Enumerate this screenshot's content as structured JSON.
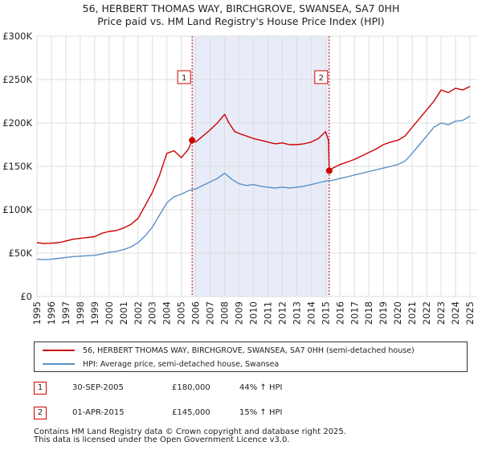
{
  "chart_data": {
    "type": "line",
    "title": "56, HERBERT THOMAS WAY, BIRCHGROVE, SWANSEA, SA7 0HH",
    "subtitle": "Price paid vs. HM Land Registry's House Price Index (HPI)",
    "xlabel": "",
    "ylabel": "",
    "xlim": [
      1995,
      2025.5
    ],
    "ylim": [
      0,
      300000
    ],
    "x_ticks": [
      1995,
      1996,
      1997,
      1998,
      1999,
      2000,
      2001,
      2002,
      2003,
      2004,
      2005,
      2006,
      2007,
      2008,
      2009,
      2010,
      2011,
      2012,
      2013,
      2014,
      2015,
      2016,
      2017,
      2018,
      2019,
      2020,
      2021,
      2022,
      2023,
      2024,
      2025
    ],
    "y_ticks": [
      {
        "value": 0,
        "label": "£0"
      },
      {
        "value": 50000,
        "label": "£50K"
      },
      {
        "value": 100000,
        "label": "£100K"
      },
      {
        "value": 150000,
        "label": "£150K"
      },
      {
        "value": 200000,
        "label": "£200K"
      },
      {
        "value": 250000,
        "label": "£250K"
      },
      {
        "value": 300000,
        "label": "£300K"
      }
    ],
    "grid": true,
    "shaded_period": {
      "start": 2005.75,
      "end": 2015.25
    },
    "series": [
      {
        "name": "56, HERBERT THOMAS WAY, BIRCHGROVE, SWANSEA, SA7 0HH (semi-detached house)",
        "color": "#cc0000",
        "x": [
          1995.0,
          1995.5,
          1996.0,
          1996.5,
          1997.0,
          1997.5,
          1998.0,
          1998.5,
          1999.0,
          1999.5,
          2000.0,
          2000.5,
          2001.0,
          2001.5,
          2002.0,
          2002.5,
          2003.0,
          2003.5,
          2004.0,
          2004.5,
          2005.0,
          2005.5,
          2005.75,
          2006.0,
          2006.5,
          2007.0,
          2007.5,
          2008.0,
          2008.3,
          2008.7,
          2009.0,
          2009.5,
          2010.0,
          2010.5,
          2011.0,
          2011.5,
          2012.0,
          2012.5,
          2013.0,
          2013.5,
          2014.0,
          2014.5,
          2015.0,
          2015.2,
          2015.25,
          2015.5,
          2016.0,
          2016.5,
          2017.0,
          2017.5,
          2018.0,
          2018.5,
          2019.0,
          2019.5,
          2020.0,
          2020.5,
          2021.0,
          2021.5,
          2022.0,
          2022.5,
          2023.0,
          2023.5,
          2024.0,
          2024.5,
          2025.0
        ],
        "y": [
          62000,
          61000,
          61500,
          62000,
          64000,
          66000,
          67000,
          68000,
          69000,
          73000,
          75000,
          76000,
          79000,
          83000,
          90000,
          105000,
          120000,
          140000,
          165000,
          168000,
          160000,
          170000,
          180000,
          178000,
          185000,
          192000,
          200000,
          210000,
          200000,
          190000,
          188000,
          185000,
          182000,
          180000,
          178000,
          176000,
          177000,
          175000,
          175000,
          176000,
          178000,
          182000,
          190000,
          180000,
          145000,
          148000,
          152000,
          155000,
          158000,
          162000,
          166000,
          170000,
          175000,
          178000,
          180000,
          185000,
          195000,
          205000,
          215000,
          225000,
          238000,
          235000,
          240000,
          238000,
          242000
        ]
      },
      {
        "name": "HPI: Average price, semi-detached house, Swansea",
        "color": "#5b8fc9",
        "x": [
          1995.0,
          1995.5,
          1996.0,
          1996.5,
          1997.0,
          1997.5,
          1998.0,
          1998.5,
          1999.0,
          1999.5,
          2000.0,
          2000.5,
          2001.0,
          2001.5,
          2002.0,
          2002.5,
          2003.0,
          2003.5,
          2004.0,
          2004.5,
          2005.0,
          2005.5,
          2006.0,
          2006.5,
          2007.0,
          2007.5,
          2008.0,
          2008.5,
          2009.0,
          2009.5,
          2010.0,
          2010.5,
          2011.0,
          2011.5,
          2012.0,
          2012.5,
          2013.0,
          2013.5,
          2014.0,
          2014.5,
          2015.0,
          2015.5,
          2016.0,
          2016.5,
          2017.0,
          2017.5,
          2018.0,
          2018.5,
          2019.0,
          2019.5,
          2020.0,
          2020.5,
          2021.0,
          2021.5,
          2022.0,
          2022.5,
          2023.0,
          2023.5,
          2024.0,
          2024.5,
          2025.0
        ],
        "y": [
          43000,
          42500,
          43000,
          44000,
          45000,
          46000,
          46500,
          47000,
          47500,
          49000,
          51000,
          52000,
          54000,
          57000,
          62000,
          70000,
          80000,
          94000,
          108000,
          115000,
          118000,
          122000,
          124000,
          128000,
          132000,
          136000,
          142000,
          135000,
          130000,
          128000,
          129000,
          127000,
          126000,
          125000,
          126000,
          125000,
          126000,
          127000,
          129000,
          131000,
          133000,
          134000,
          136000,
          138000,
          140000,
          142000,
          144000,
          146000,
          148000,
          150000,
          152000,
          156000,
          165000,
          175000,
          185000,
          195000,
          200000,
          198000,
          202000,
          203000,
          208000
        ]
      }
    ],
    "sale_markers": [
      {
        "label": "1",
        "x": 2005.75,
        "y": 180000
      },
      {
        "label": "2",
        "x": 2015.25,
        "y": 145000
      }
    ]
  },
  "legend": {
    "items": [
      {
        "label": "56, HERBERT THOMAS WAY, BIRCHGROVE, SWANSEA, SA7 0HH (semi-detached house)",
        "color": "#cc0000"
      },
      {
        "label": "HPI: Average price, semi-detached house, Swansea",
        "color": "#5b8fc9"
      }
    ]
  },
  "sales": [
    {
      "num": "1",
      "date": "30-SEP-2005",
      "price": "£180,000",
      "hpi": "44% ↑ HPI"
    },
    {
      "num": "2",
      "date": "01-APR-2015",
      "price": "£145,000",
      "hpi": "15% ↑ HPI"
    }
  ],
  "footer": {
    "line1": "Contains HM Land Registry data © Crown copyright and database right 2025.",
    "line2": "This data is licensed under the Open Government Licence v3.0."
  },
  "colors": {
    "property": "#cc0000",
    "hpi": "#5b8fc9",
    "shade": "#e8ecf8",
    "grid": "#dddddd"
  }
}
